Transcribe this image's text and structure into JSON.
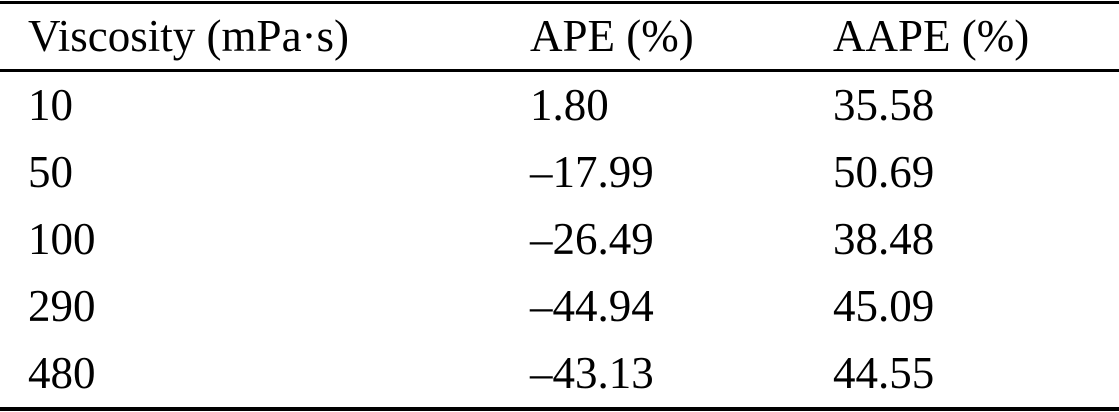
{
  "table": {
    "columns": [
      "Viscosity (mPa·s)",
      "APE (%)",
      "AAPE (%)"
    ],
    "rows": [
      [
        "10",
        "1.80",
        "35.58"
      ],
      [
        "50",
        "–17.99",
        "50.69"
      ],
      [
        "100",
        "–26.49",
        "38.48"
      ],
      [
        "290",
        "–44.94",
        "45.09"
      ],
      [
        "480",
        "–43.13",
        "44.55"
      ]
    ]
  },
  "colors": {
    "text": "#000000",
    "background": "#ffffff",
    "rule": "#000000"
  },
  "chart_data": {
    "type": "table",
    "title": "",
    "columns": [
      "Viscosity (mPa·s)",
      "APE (%)",
      "AAPE (%)"
    ],
    "viscosity_mPas": [
      10,
      50,
      100,
      290,
      480
    ],
    "APE_percent": [
      1.8,
      -17.99,
      -26.49,
      -44.94,
      -43.13
    ],
    "AAPE_percent": [
      35.58,
      50.69,
      38.48,
      45.09,
      44.55
    ]
  }
}
